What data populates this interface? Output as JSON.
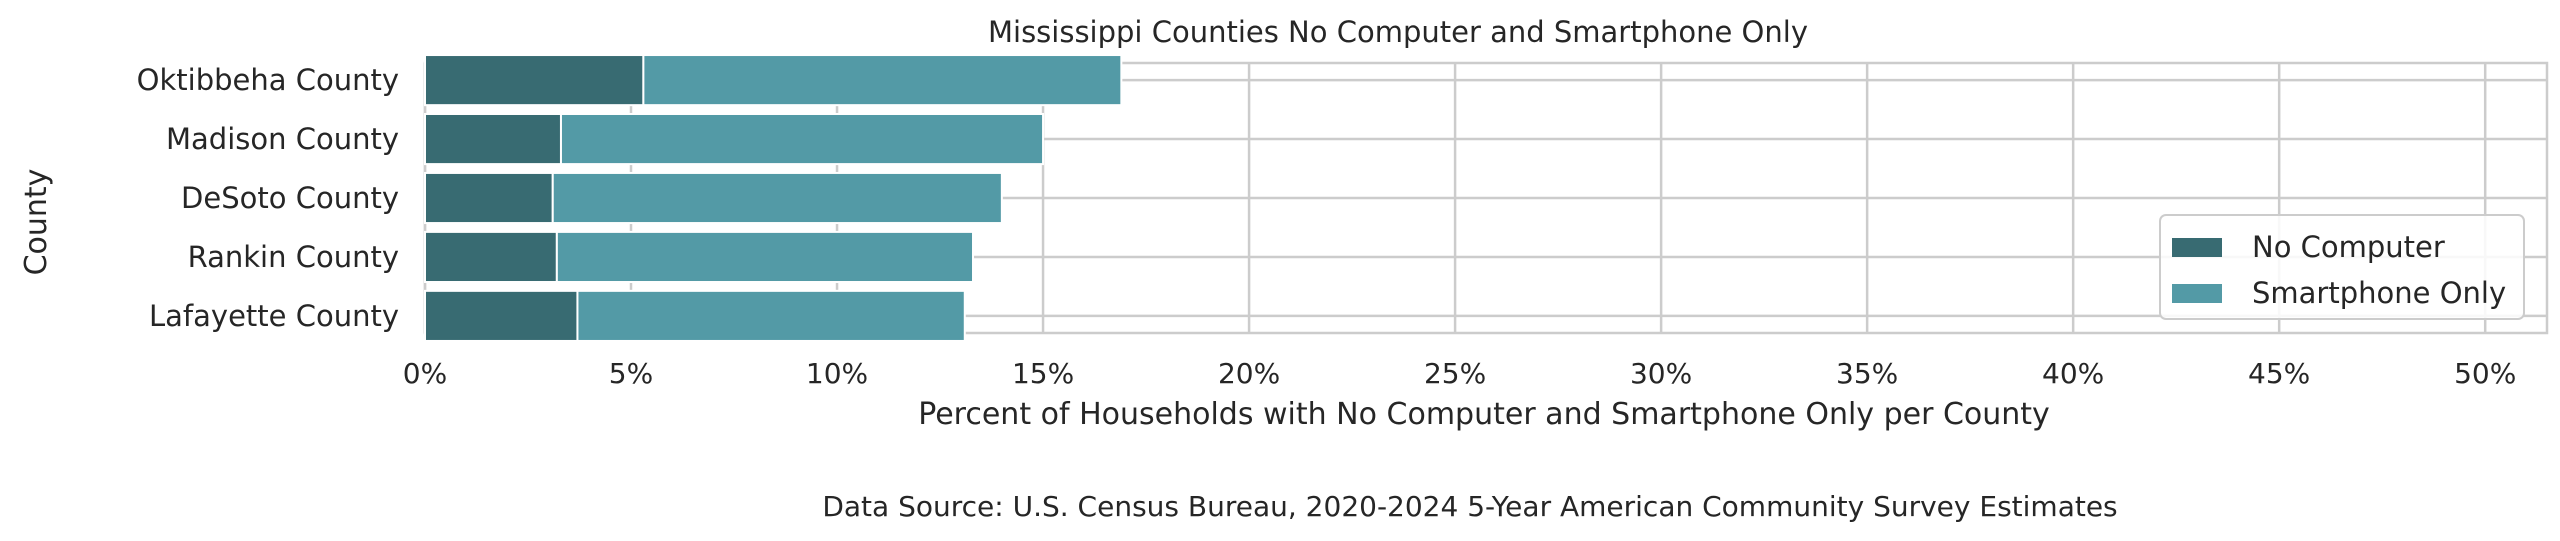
{
  "chart_data": {
    "type": "bar",
    "orientation": "horizontal",
    "stacked": true,
    "title": "Mississippi Counties No Computer and Smartphone Only",
    "xlabel": "Percent of Households with No Computer and Smartphone Only per County",
    "ylabel": "County",
    "source": "Data Source: U.S. Census Bureau, 2020-2024 5-Year American Community Survey Estimates",
    "categories": [
      "Oktibbeha County",
      "Madison County",
      "DeSoto County",
      "Rankin County",
      "Lafayette County"
    ],
    "series": [
      {
        "name": "No Computer",
        "color": "#386b72",
        "values": [
          5.3,
          3.3,
          3.1,
          3.2,
          3.7
        ]
      },
      {
        "name": "Smartphone Only",
        "color": "#539aa6",
        "values": [
          11.6,
          11.7,
          10.9,
          10.1,
          9.4
        ]
      }
    ],
    "xlim": [
      0,
      51.5
    ],
    "xticks": [
      0,
      5,
      10,
      15,
      20,
      25,
      30,
      35,
      40,
      45,
      50
    ],
    "xtick_labels": [
      "0%",
      "5%",
      "10%",
      "15%",
      "20%",
      "25%",
      "30%",
      "35%",
      "40%",
      "45%",
      "50%"
    ],
    "grid": true,
    "legend_position": "lower-right"
  }
}
